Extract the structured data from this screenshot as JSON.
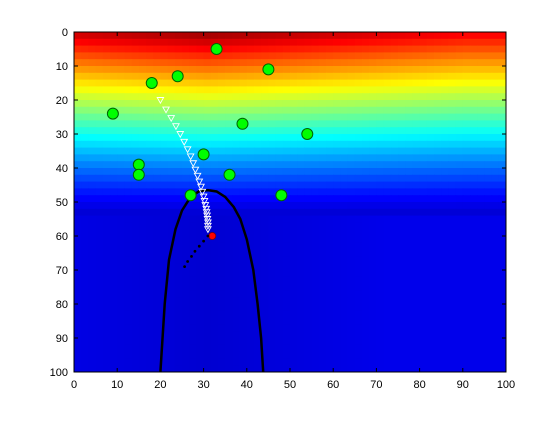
{
  "chart_data": {
    "type": "scatter",
    "title": "",
    "xlabel": "",
    "ylabel": "",
    "xlim": [
      0,
      100
    ],
    "ylim": [
      100,
      0
    ],
    "y_reversed": true,
    "grid": false,
    "legend": "none",
    "background_colormap": "jet",
    "x_ticks": [
      "0",
      "10",
      "20",
      "30",
      "40",
      "50",
      "60",
      "70",
      "80",
      "90",
      "100"
    ],
    "y_ticks": [
      "0",
      "10",
      "20",
      "30",
      "40",
      "50",
      "60",
      "70",
      "80",
      "90",
      "100"
    ],
    "series": [
      {
        "kind": "green-circles",
        "color": "#00ff00",
        "points": [
          [
            33,
            5
          ],
          [
            24,
            13
          ],
          [
            45,
            11
          ],
          [
            18,
            15
          ],
          [
            9,
            24
          ],
          [
            39,
            27
          ],
          [
            54,
            30
          ],
          [
            30,
            36
          ],
          [
            15,
            39
          ],
          [
            15,
            42
          ],
          [
            36,
            42
          ],
          [
            27,
            48
          ],
          [
            48,
            48
          ]
        ]
      },
      {
        "kind": "white-triangles",
        "color": "#ffffff",
        "points": [
          [
            20,
            20
          ],
          [
            21.3,
            22.8
          ],
          [
            22.5,
            25.3
          ],
          [
            23.6,
            27.7
          ],
          [
            24.6,
            30
          ],
          [
            25.5,
            32.3
          ],
          [
            26.3,
            34.5
          ],
          [
            27,
            36.6
          ],
          [
            27.6,
            38.6
          ],
          [
            28.1,
            40.5
          ],
          [
            28.6,
            42.3
          ],
          [
            29,
            44
          ],
          [
            29.4,
            45.5
          ],
          [
            29.7,
            47
          ],
          [
            30,
            48.4
          ],
          [
            30.2,
            49.7
          ],
          [
            30.4,
            50.9
          ],
          [
            30.6,
            52
          ],
          [
            30.7,
            53
          ],
          [
            30.8,
            54
          ],
          [
            30.9,
            55
          ],
          [
            31,
            56
          ],
          [
            31,
            57
          ],
          [
            31,
            58
          ]
        ]
      },
      {
        "kind": "red-marker",
        "color": "#ff0000",
        "points": [
          [
            32,
            60
          ]
        ]
      },
      {
        "kind": "black-dots",
        "color": "#000000",
        "points": [
          [
            31,
            60
          ],
          [
            30,
            61.5
          ],
          [
            29,
            63
          ],
          [
            28,
            64.5
          ],
          [
            27.2,
            66
          ],
          [
            26.3,
            67.5
          ],
          [
            25.6,
            69
          ]
        ]
      },
      {
        "kind": "black-curve",
        "color": "#000000",
        "points": [
          [
            20,
            100
          ],
          [
            21,
            80
          ],
          [
            22,
            67
          ],
          [
            23.5,
            58
          ],
          [
            25,
            52.5
          ],
          [
            27,
            48.5
          ],
          [
            29,
            46.8
          ],
          [
            31,
            46.5
          ],
          [
            33,
            46.9
          ],
          [
            35,
            48.5
          ],
          [
            37,
            51.5
          ],
          [
            38.5,
            55
          ],
          [
            40,
            61
          ],
          [
            41.5,
            70
          ],
          [
            42.5,
            80
          ],
          [
            43.3,
            90
          ],
          [
            43.8,
            100
          ]
        ]
      }
    ]
  }
}
